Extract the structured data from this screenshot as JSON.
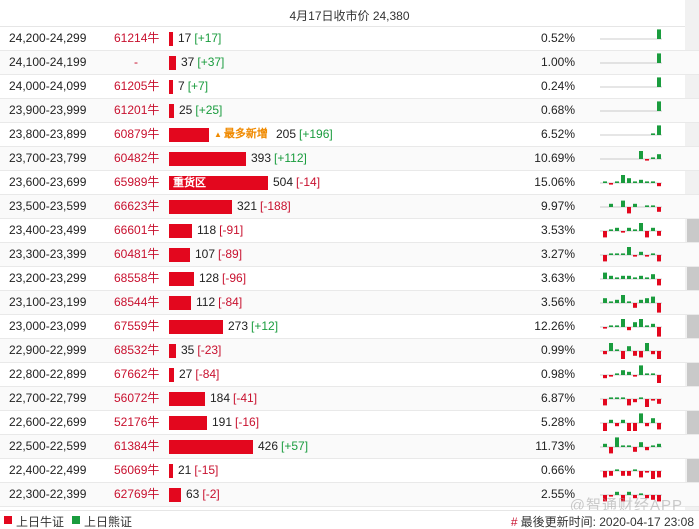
{
  "header": {
    "title": "4月17日收市价 24,380"
  },
  "colors": {
    "bull": "#e3071e",
    "bear": "#1a9c3e"
  },
  "rows": [
    {
      "range": "24,200-24,299",
      "code": "61214牛",
      "value": "17",
      "change": "[+17]",
      "pct": "0.52%",
      "spark": [
        0,
        0,
        0,
        0,
        0,
        0,
        0,
        0,
        0,
        6
      ],
      "note": "",
      "bar_label": ""
    },
    {
      "range": "24,100-24,199",
      "code": "-",
      "value": "37",
      "change": "[+37]",
      "pct": "1.00%",
      "spark": [
        0,
        0,
        0,
        0,
        0,
        0,
        0,
        0,
        0,
        6
      ],
      "note": "",
      "bar_label": ""
    },
    {
      "range": "24,000-24,099",
      "code": "61205牛",
      "value": "7",
      "change": "[+7]",
      "pct": "0.24%",
      "spark": [
        0,
        0,
        0,
        0,
        0,
        0,
        0,
        0,
        0,
        6
      ],
      "note": "",
      "bar_label": ""
    },
    {
      "range": "23,900-23,999",
      "code": "61201牛",
      "value": "25",
      "change": "[+25]",
      "pct": "0.68%",
      "spark": [
        0,
        0,
        0,
        0,
        0,
        0,
        0,
        0,
        0,
        6
      ],
      "note": "",
      "bar_label": ""
    },
    {
      "range": "23,800-23,899",
      "code": "60879牛",
      "value": "205",
      "change": "[+196]",
      "pct": "6.52%",
      "spark": [
        0,
        0,
        0,
        0,
        0,
        0,
        0,
        0,
        1,
        6
      ],
      "note": "最多新增",
      "bar_label": ""
    },
    {
      "range": "23,700-23,799",
      "code": "60482牛",
      "value": "393",
      "change": "[+112]",
      "pct": "10.69%",
      "spark": [
        0,
        0,
        0,
        0,
        0,
        0,
        5,
        -1,
        1,
        3
      ],
      "note": "",
      "bar_label": ""
    },
    {
      "range": "23,600-23,699",
      "code": "65989牛",
      "value": "504",
      "change": "[-14]",
      "pct": "15.06%",
      "spark": [
        1,
        -1,
        1,
        5,
        3,
        1,
        2,
        1,
        1,
        -2
      ],
      "note": "",
      "bar_label": "重货区"
    },
    {
      "range": "23,500-23,599",
      "code": "66623牛",
      "value": "321",
      "change": "[-188]",
      "pct": "9.97%",
      "spark": [
        0,
        2,
        0,
        4,
        -4,
        2,
        0,
        1,
        1,
        -3
      ],
      "note": "",
      "bar_label": ""
    },
    {
      "range": "23,400-23,499",
      "code": "66601牛",
      "value": "118",
      "change": "[-91]",
      "pct": "3.53%",
      "spark": [
        -4,
        1,
        2,
        -1,
        2,
        1,
        5,
        -4,
        2,
        -3
      ],
      "note": "",
      "bar_label": ""
    },
    {
      "range": "23,300-23,399",
      "code": "60481牛",
      "value": "107",
      "change": "[-89]",
      "pct": "3.27%",
      "spark": [
        -4,
        1,
        1,
        1,
        5,
        -1,
        2,
        -1,
        1,
        -4
      ],
      "note": "",
      "bar_label": ""
    },
    {
      "range": "23,200-23,299",
      "code": "68558牛",
      "value": "128",
      "change": "[-96]",
      "pct": "3.63%",
      "spark": [
        4,
        2,
        1,
        2,
        2,
        1,
        2,
        1,
        3,
        -4
      ],
      "note": "",
      "bar_label": ""
    },
    {
      "range": "23,100-23,199",
      "code": "68544牛",
      "value": "112",
      "change": "[-84]",
      "pct": "3.56%",
      "spark": [
        3,
        1,
        2,
        5,
        1,
        -3,
        2,
        3,
        4,
        -6
      ],
      "note": "",
      "bar_label": ""
    },
    {
      "range": "23,000-23,099",
      "code": "67559牛",
      "value": "273",
      "change": "[+12]",
      "pct": "12.26%",
      "spark": [
        -1,
        1,
        1,
        5,
        -2,
        3,
        5,
        1,
        2,
        -6
      ],
      "note": "",
      "bar_label": ""
    },
    {
      "range": "22,900-22,999",
      "code": "68532牛",
      "value": "35",
      "change": "[-23]",
      "pct": "0.99%",
      "spark": [
        -2,
        5,
        1,
        -5,
        3,
        -3,
        -4,
        5,
        -2,
        -5
      ],
      "note": "",
      "bar_label": ""
    },
    {
      "range": "22,800-22,899",
      "code": "67662牛",
      "value": "27",
      "change": "[-84]",
      "pct": "0.98%",
      "spark": [
        -2,
        -1,
        1,
        3,
        2,
        -1,
        6,
        1,
        1,
        -5
      ],
      "note": "",
      "bar_label": ""
    },
    {
      "range": "22,700-22,799",
      "code": "56072牛",
      "value": "184",
      "change": "[-41]",
      "pct": "6.87%",
      "spark": [
        -4,
        1,
        1,
        1,
        -4,
        -2,
        1,
        -5,
        -1,
        -3
      ],
      "note": "",
      "bar_label": ""
    },
    {
      "range": "22,600-22,699",
      "code": "52176牛",
      "value": "191",
      "change": "[-16]",
      "pct": "5.28%",
      "spark": [
        -5,
        2,
        -2,
        2,
        -5,
        -5,
        6,
        -2,
        3,
        -4
      ],
      "note": "",
      "bar_label": ""
    },
    {
      "range": "22,500-22,599",
      "code": "61384牛",
      "value": "426",
      "change": "[+57]",
      "pct": "11.73%",
      "spark": [
        2,
        -4,
        6,
        1,
        1,
        -3,
        3,
        -2,
        1,
        2
      ],
      "note": "",
      "bar_label": ""
    },
    {
      "range": "22,400-22,499",
      "code": "56069牛",
      "value": "21",
      "change": "[-15]",
      "pct": "0.66%",
      "spark": [
        -4,
        -3,
        1,
        -3,
        -3,
        1,
        -4,
        -1,
        -5,
        -4
      ],
      "note": "",
      "bar_label": ""
    },
    {
      "range": "22,300-22,399",
      "code": "62769牛",
      "value": "63",
      "change": "[-2]",
      "pct": "2.55%",
      "spark": [
        -4,
        -1,
        2,
        -4,
        2,
        -2,
        1,
        -2,
        -3,
        -4
      ],
      "note": "",
      "bar_label": ""
    }
  ],
  "footer": {
    "legend_bull": "上日牛证",
    "legend_bear": "上日熊证",
    "hash": "#",
    "updated": "最後更新时间: 2020-04-17 23:08"
  },
  "watermark": "@智通财经APP"
}
